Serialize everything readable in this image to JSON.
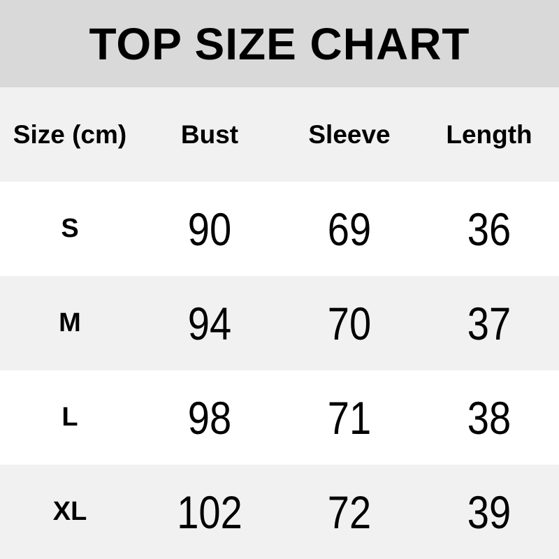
{
  "title": "TOP SIZE CHART",
  "table": {
    "headers": [
      "Size (cm)",
      "Bust",
      "Sleeve",
      "Length"
    ],
    "rows": [
      [
        "S",
        "90",
        "69",
        "36"
      ],
      [
        "M",
        "94",
        "70",
        "37"
      ],
      [
        "L",
        "98",
        "71",
        "38"
      ],
      [
        "XL",
        "102",
        "72",
        "39"
      ]
    ]
  },
  "colors": {
    "title_band_bg": "#d9d9d9",
    "alt_row_bg": "#f1f1f1",
    "white_row_bg": "#ffffff",
    "text": "#000000"
  },
  "chart_data": {
    "type": "table",
    "title": "TOP SIZE CHART",
    "unit": "cm",
    "columns": [
      "Size (cm)",
      "Bust",
      "Sleeve",
      "Length"
    ],
    "rows": [
      {
        "size": "S",
        "bust": 90,
        "sleeve": 69,
        "length": 36
      },
      {
        "size": "M",
        "bust": 94,
        "sleeve": 70,
        "length": 37
      },
      {
        "size": "L",
        "bust": 98,
        "sleeve": 71,
        "length": 38
      },
      {
        "size": "XL",
        "bust": 102,
        "sleeve": 72,
        "length": 39
      }
    ]
  }
}
